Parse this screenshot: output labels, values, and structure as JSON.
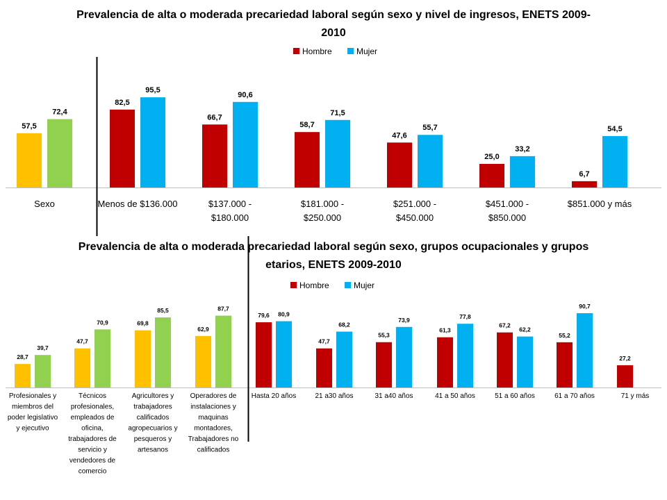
{
  "chart_data": [
    {
      "type": "bar",
      "title": "Prevalencia de alta o moderada precariedad laboral según sexo y nivel de ingresos, ENETS 2009-2010",
      "title_lines": [
        "Prevalencia de alta o moderada precariedad laboral según sexo y nivel de ingresos, ENETS 2009-",
        "2010"
      ],
      "categories": [
        "Sexo",
        "Menos de $136.000",
        "$137.000 - $180.000",
        "$181.000 - $250.000",
        "$251.000 - $450.000",
        "$451.000 - $850.000",
        "$851.000 y más"
      ],
      "category_lines": [
        [
          "Sexo"
        ],
        [
          "Menos de $136.000"
        ],
        [
          "$137.000 -",
          "$180.000"
        ],
        [
          "$181.000 -",
          "$250.000"
        ],
        [
          "$251.000 -",
          "$450.000"
        ],
        [
          "$451.000 -",
          "$850.000"
        ],
        [
          "$851.000 y más"
        ]
      ],
      "series": [
        {
          "name": "Hombre",
          "values": [
            57.5,
            82.5,
            66.7,
            58.7,
            47.6,
            25.0,
            6.7
          ],
          "labels": [
            "57,5",
            "82,5",
            "66,7",
            "58,7",
            "47,6",
            "25,0",
            "6,7"
          ],
          "color": "#C00000"
        },
        {
          "name": "Mujer",
          "values": [
            72.4,
            95.5,
            90.6,
            71.5,
            55.7,
            33.2,
            54.5
          ],
          "labels": [
            "72,4",
            "95,5",
            "90,6",
            "71,5",
            "55,7",
            "33,2",
            "54,5"
          ],
          "color": "#00B0F0"
        }
      ],
      "highlight_colors": {
        "Hombre": "#FFC000",
        "Mujer": "#92D050"
      },
      "highlighted_categories": [
        0
      ],
      "separator_after_category": 0,
      "legend": "top",
      "ylim": [
        0,
        100
      ],
      "grid": false
    },
    {
      "type": "bar",
      "title": "Prevalencia de alta o moderada precariedad laboral según sexo, grupos ocupacionales y grupos etarios, ENETS 2009-2010",
      "title_lines": [
        "Prevalencia de alta o moderada precariedad laboral según sexo, grupos ocupacionales y grupos",
        "etarios,   ENETS 2009-2010"
      ],
      "categories": [
        "Profesionales y miembros del poder legislativo y ejecutivo",
        "Técnicos profesionales, empleados de oficina, trabajadores de servicio y vendedores de comercio",
        "Agricultores y trabajadores calificados agropecuarios y pesqueros y artesanos",
        "Operadores de instalaciones y maquinas montadores, Trabajadores no calificados",
        "Hasta 20 años",
        "21 a30 años",
        "31 a40 años",
        "41 a 50 años",
        "51 a 60 años",
        "61 a 70 años",
        "71 y más"
      ],
      "category_lines": [
        [
          "Profesionales y",
          "miembros del",
          "poder legislativo",
          "y ejecutivo"
        ],
        [
          "Técnicos",
          "profesionales,",
          "empleados de",
          "oficina,",
          "trabajadores de",
          "servicio y",
          "vendedores de",
          "comercio"
        ],
        [
          "Agricultores y",
          "trabajadores",
          "calificados",
          "agropecuarios y",
          "pesqueros y",
          "artesanos"
        ],
        [
          "Operadores de",
          "instalaciones y",
          "maquinas",
          "montadores,",
          "Trabajadores no",
          "calificados"
        ],
        [
          "Hasta 20 años"
        ],
        [
          "21 a30 años"
        ],
        [
          "31 a40 años"
        ],
        [
          "41 a 50 años"
        ],
        [
          "51 a 60 años"
        ],
        [
          "61 a 70 años"
        ],
        [
          "71 y más"
        ]
      ],
      "series": [
        {
          "name": "Hombre",
          "values": [
            28.7,
            47.7,
            69.8,
            62.9,
            79.6,
            47.7,
            55.3,
            61.3,
            67.2,
            55.2,
            27.2
          ],
          "labels": [
            "28,7",
            "47,7",
            "69,8",
            "62,9",
            "79,6",
            "47,7",
            "55,3",
            "61,3",
            "67,2",
            "55,2",
            "27,2"
          ],
          "color": "#C00000"
        },
        {
          "name": "Mujer",
          "values": [
            39.7,
            70.9,
            85.5,
            87.7,
            80.9,
            68.2,
            73.9,
            77.8,
            62.2,
            90.7,
            null
          ],
          "labels": [
            "39,7",
            "70,9",
            "85,5",
            "87,7",
            "80,9",
            "68,2",
            "73,9",
            "77,8",
            "62,2",
            "90,7",
            ""
          ],
          "color": "#00B0F0"
        }
      ],
      "highlight_colors": {
        "Hombre": "#FFC000",
        "Mujer": "#92D050"
      },
      "highlighted_categories": [
        0,
        1,
        2,
        3
      ],
      "separator_after_category": 3,
      "legend": "top",
      "ylim": [
        0,
        100
      ],
      "grid": false
    }
  ]
}
